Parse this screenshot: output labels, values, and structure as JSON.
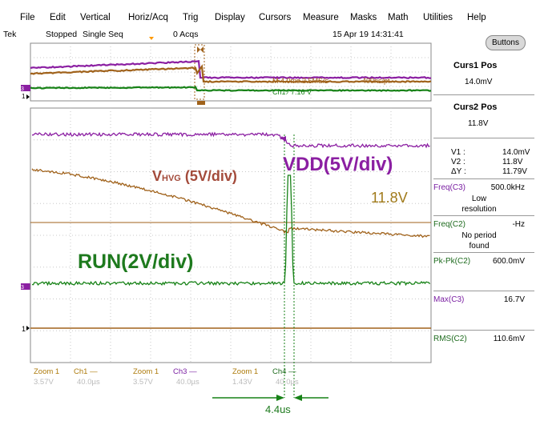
{
  "menu": [
    "File",
    "Edit",
    "Vertical",
    "Horiz/Acq",
    "Trig",
    "Display",
    "Cursors",
    "Measure",
    "Masks",
    "Math",
    "Utilities",
    "Help"
  ],
  "status": {
    "brand": "Tek",
    "acq_state": "Stopped",
    "acq_mode": "Single Seq",
    "acq_count": "0 Acqs",
    "datetime": "15 Apr 19 14:31:41"
  },
  "buttons_label": "Buttons",
  "right_panel": {
    "curs1_title": "Curs1 Pos",
    "curs1_value": "14.0mV",
    "curs2_title": "Curs2 Pos",
    "curs2_value": "11.8V",
    "v1_label": "V1 :",
    "v1_value": "14.0mV",
    "v2_label": "V2 :",
    "v2_value": "11.8V",
    "dv_label": "ΔY :",
    "dv_value": "11.79V",
    "measurements": [
      {
        "label": "Freq(C3)",
        "value": "500.0kHz",
        "note": [
          "Low",
          "resolution"
        ],
        "color": "#7a1fa2"
      },
      {
        "label": "Freq(C2)",
        "value": "-Hz",
        "note": [
          "No period",
          "found"
        ],
        "color": "#1e6b1e"
      },
      {
        "label": "Pk-Pk(C2)",
        "value": "600.0mV",
        "note": [],
        "color": "#1e6b1e"
      },
      {
        "label": "Max(C3)",
        "value": "16.7V",
        "note": [],
        "color": "#7a1fa2"
      },
      {
        "label": "RMS(C2)",
        "value": "110.6mV",
        "note": [],
        "color": "#1e6b1e"
      }
    ]
  },
  "overview_labels": {
    "m_label": "M 4.0ms 2.5MS/s",
    "m_right": "400ns/pt",
    "ch_label": "Ch1 ∕ 7.16 V"
  },
  "zoom_boxes": [
    {
      "title": "Zoom 1",
      "ch": "Ch1 —",
      "v": "3.57V",
      "t": "40.0µs",
      "ch_color": "#ad7a0a"
    },
    {
      "title": "Zoom 1",
      "ch": "Ch3 —",
      "v": "3.57V",
      "t": "40.0µs",
      "ch_color": "#7a1fa2"
    },
    {
      "title": "Zoom 1",
      "ch": "Ch4 —",
      "v": "1.43V",
      "t": "40.0µs",
      "ch_color": "#1e6b1e"
    }
  ],
  "annotations": {
    "vhvg_main": "V",
    "vhvg_sub": "HVG",
    "vhvg_rest": " (5V/div)",
    "vdd": "VDD(5V/div)",
    "voltage": "11.8V",
    "run": "RUN(2V/div)",
    "delta_t": "4.4us"
  },
  "colors": {
    "ch1": "#a0621b",
    "ch3": "#8b1fa2",
    "ch4": "#178217",
    "grid": "#c8c8c8",
    "vhvg_text": "#a34a3a",
    "vdd_text": "#8b1fa2",
    "run_text": "#1e7a1e",
    "volt_text": "#a07a1a"
  }
}
